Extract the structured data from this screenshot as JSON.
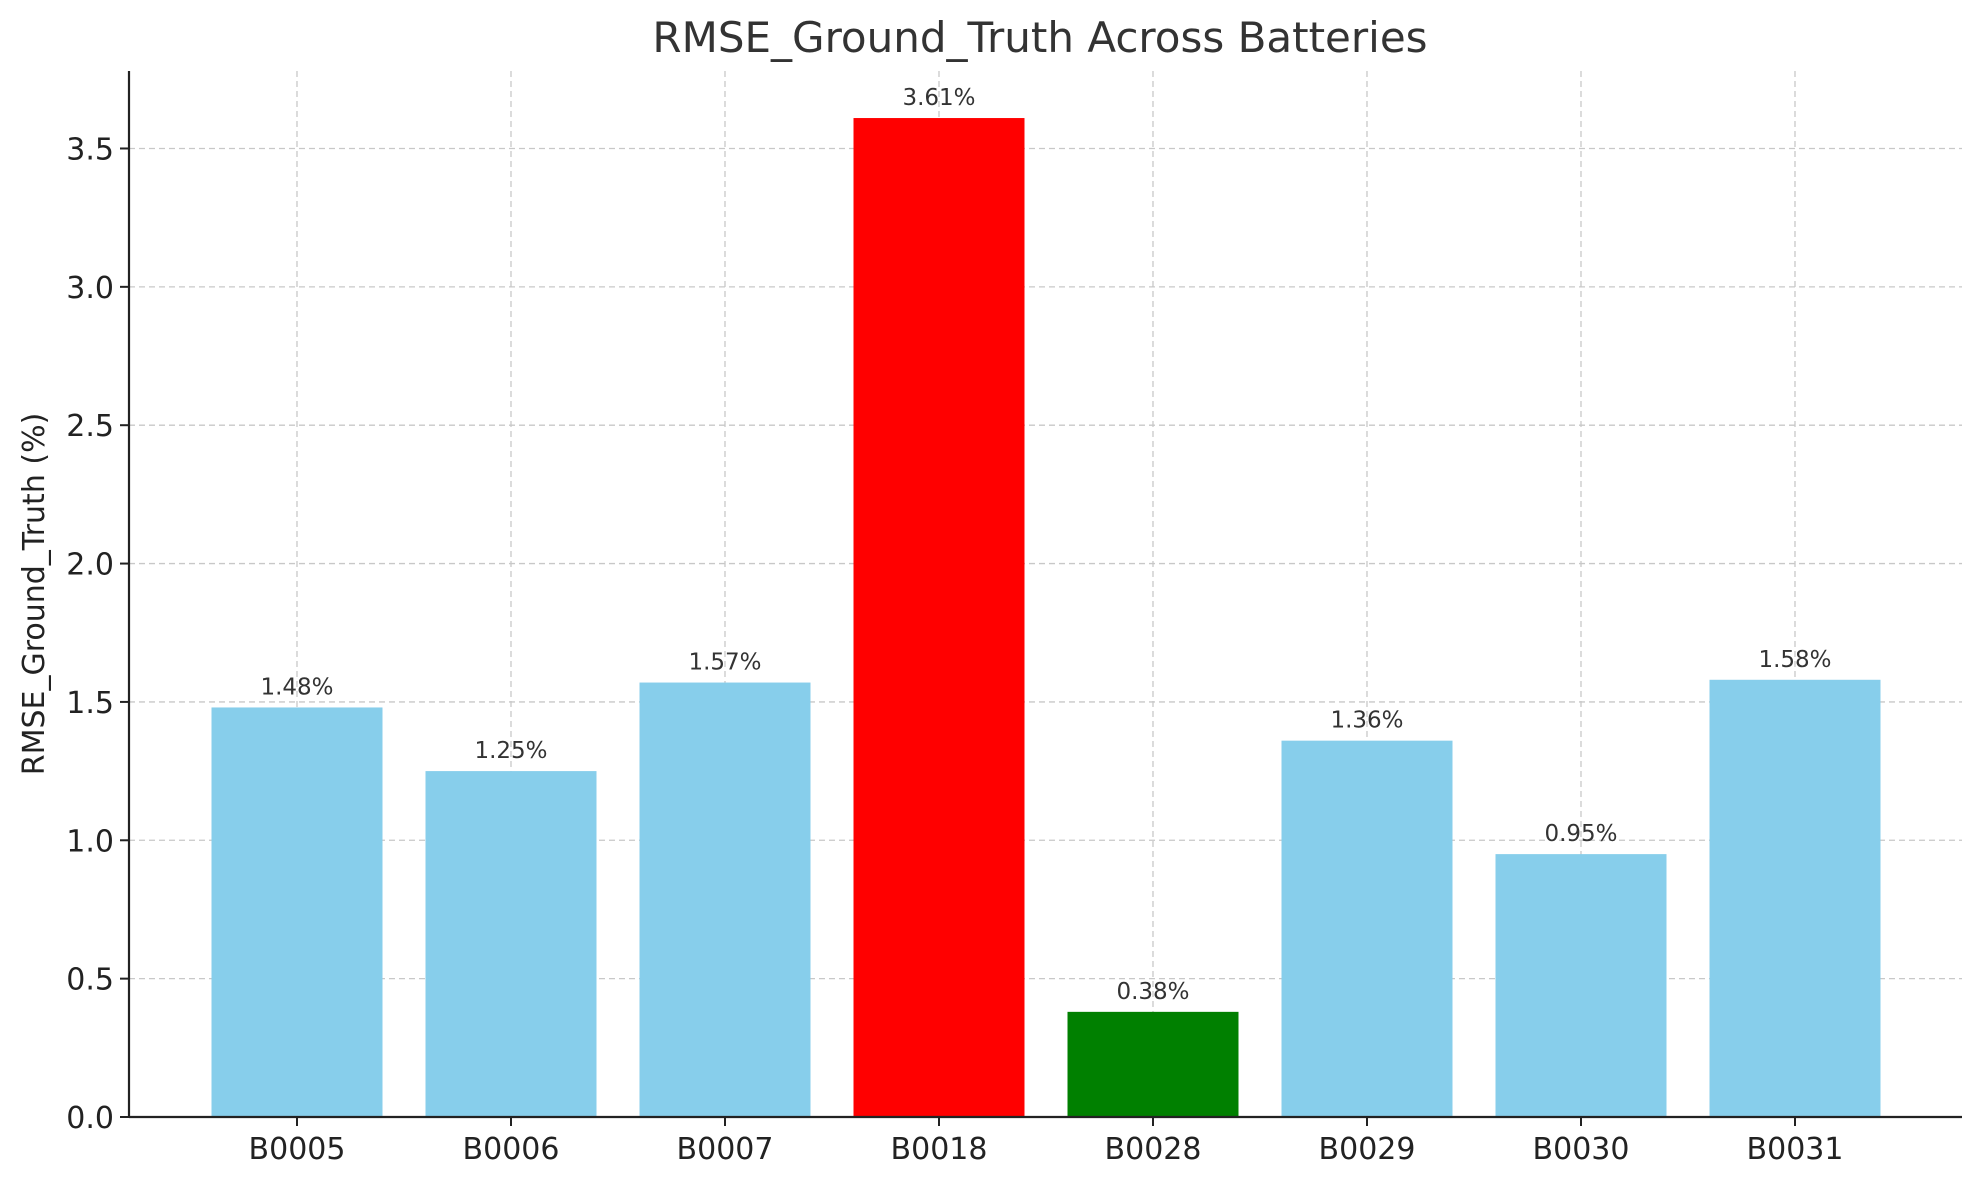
{
  "chart_data": {
    "type": "bar",
    "title": "RMSE_Ground_Truth Across Batteries",
    "xlabel": "",
    "ylabel": "RMSE_Ground_Truth (%)",
    "categories": [
      "B0005",
      "B0006",
      "B0007",
      "B0018",
      "B0028",
      "B0029",
      "B0030",
      "B0031"
    ],
    "values": [
      1.48,
      1.25,
      1.57,
      3.61,
      0.38,
      1.36,
      0.95,
      1.58
    ],
    "data_labels": [
      "1.48%",
      "1.25%",
      "1.57%",
      "3.61%",
      "0.38%",
      "1.36%",
      "0.95%",
      "1.58%"
    ],
    "bar_colors": [
      "#87CEEB",
      "#87CEEB",
      "#87CEEB",
      "#FF0000",
      "#008000",
      "#87CEEB",
      "#87CEEB",
      "#87CEEB"
    ],
    "ylim": [
      0,
      3.78
    ],
    "yticks": [
      0.0,
      0.5,
      1.0,
      1.5,
      2.0,
      2.5,
      3.0,
      3.5
    ],
    "ytick_labels": [
      "0.0",
      "0.5",
      "1.0",
      "1.5",
      "2.0",
      "2.5",
      "3.0",
      "3.5"
    ],
    "grid": true,
    "legend": "none"
  }
}
